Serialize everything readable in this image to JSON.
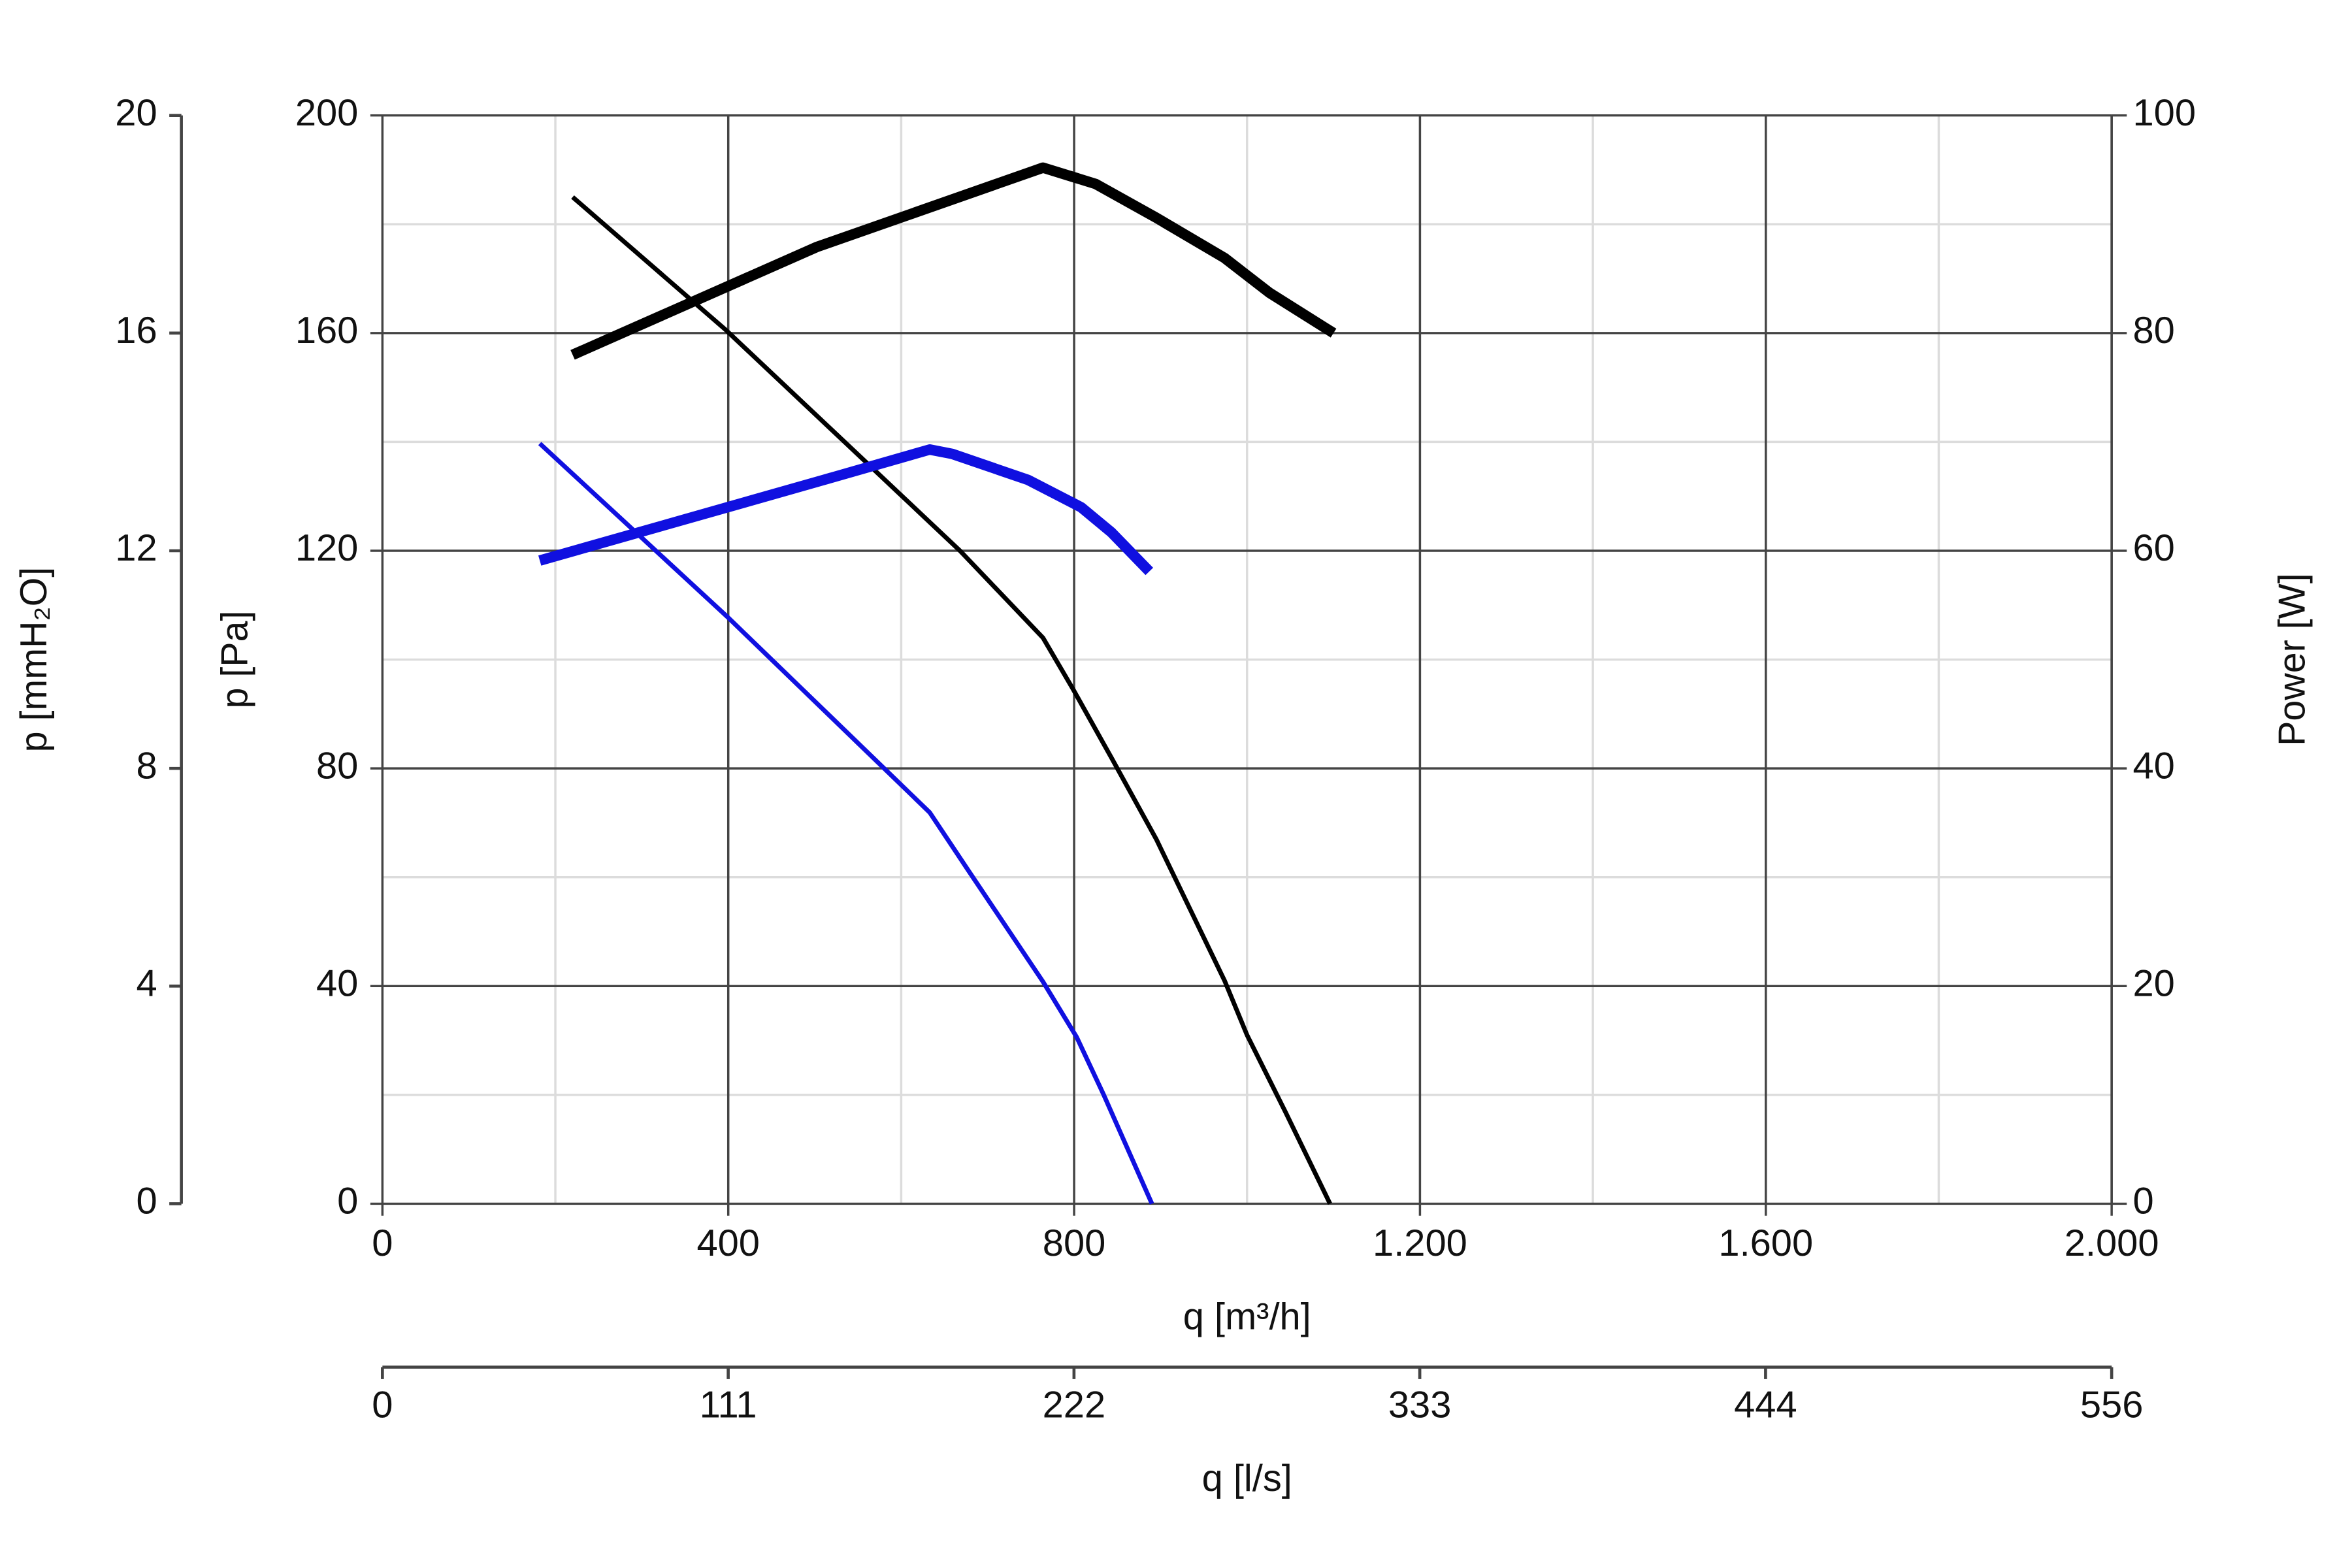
{
  "chart_data": {
    "type": "line",
    "xlabel": "q [m³/h]",
    "xlim": [
      0,
      2000
    ],
    "xticks": [
      0,
      400,
      800,
      {
        "value": 1200,
        "label": "1.200"
      },
      {
        "value": 1600,
        "label": "1.600"
      },
      {
        "value": 2000,
        "label": "2.000"
      }
    ],
    "x2label": "q [l/s]",
    "x2lim": [
      0,
      555.6
    ],
    "x2ticks": [
      0,
      {
        "value": 111.1,
        "label": "111"
      },
      {
        "value": 222.2,
        "label": "222"
      },
      {
        "value": 333.3,
        "label": "333"
      },
      {
        "value": 444.4,
        "label": "444"
      },
      {
        "value": 555.6,
        "label": "556"
      }
    ],
    "ylabel": "p [Pa]",
    "ylim": [
      0,
      200
    ],
    "yticks": [
      0,
      40,
      80,
      120,
      160,
      200
    ],
    "y3label": "p [mmH₂O]",
    "y3lim": [
      0,
      20
    ],
    "y3ticks": [
      0,
      4,
      8,
      12,
      16,
      20
    ],
    "y2label": "Power [W]",
    "y2lim": [
      0,
      100
    ],
    "y2ticks": [
      0,
      20,
      40,
      60,
      80,
      100
    ],
    "grid": true,
    "minor_grid": true,
    "series": [
      {
        "color": "#000000",
        "width": 3,
        "x": [
          220,
          397,
          668,
          764,
          799,
          843,
          895,
          974,
          1000,
          1044,
          1096
        ],
        "values": [
          185,
          160.6,
          120,
          104,
          94.5,
          82,
          67,
          41,
          31,
          17,
          0
        ]
      },
      {
        "color": "#000000",
        "width": 7,
        "axis": "y2",
        "x": [
          220,
          502,
          764,
          825,
          895,
          974,
          1026,
          1100
        ],
        "values": [
          78,
          87.9,
          95.2,
          93.7,
          90.6,
          86.9,
          83.7,
          80
        ]
      },
      {
        "color": "#1010e0",
        "width": 3,
        "x": [
          182,
          400,
          633,
          677,
          764,
          803,
          834,
          890
        ],
        "values": [
          139.7,
          107.7,
          71.9,
          61.4,
          40.8,
          30.6,
          20.1,
          0
        ]
      },
      {
        "color": "#1010e0",
        "width": 7,
        "axis": "y2",
        "x": [
          182,
          510,
          633,
          659,
          747,
          808,
          843,
          887
        ],
        "values": [
          59.1,
          66.5,
          69.3,
          68.9,
          66.5,
          64,
          61.7,
          58.1
        ]
      }
    ]
  }
}
